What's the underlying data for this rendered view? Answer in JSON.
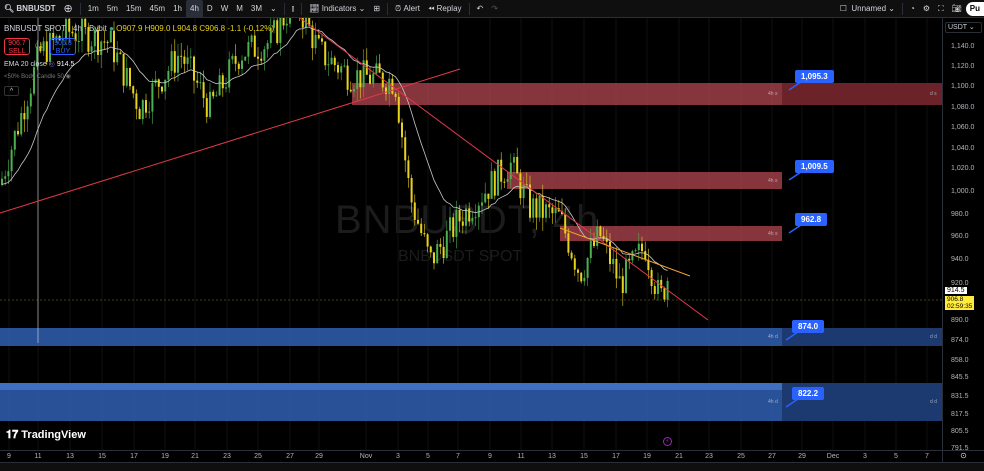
{
  "toolbar": {
    "symbol": "BNBUSDT",
    "intervals": [
      "1m",
      "5m",
      "15m",
      "45m",
      "1h",
      "4h",
      "D",
      "W",
      "M",
      "3M"
    ],
    "active_interval": "4h",
    "indicators_label": "Indicators",
    "alert_label": "Alert",
    "replay_label": "Replay",
    "layout_name": "Unnamed",
    "publish_label": "Pu"
  },
  "legend": {
    "title": "BNBUSDT SPOT · 4h · Bybit",
    "ohlc": "O907.9 H909.0 L904.8 C906.8 -1.1 (-0.12%)",
    "sell_price": "906.7",
    "sell_label": "SELL",
    "spread": "0.1",
    "buy_price": "906.8",
    "buy_label": "BUY",
    "ema_label": "EMA 20 close",
    "ema_value": "914.5",
    "indicator2": "<50% Body Candle 50"
  },
  "watermark": {
    "main": "BNBUSDT, 4h",
    "sub": "BNBUSDT SPOT"
  },
  "zones": [
    {
      "price": "1,095.3",
      "type": "supply",
      "tag": "4h s",
      "tag2": "d s"
    },
    {
      "price": "1,009.5",
      "type": "supply",
      "tag": "4h s"
    },
    {
      "price": "962.8",
      "type": "supply",
      "tag": "4h s"
    },
    {
      "price": "874.0",
      "type": "demand",
      "tag": "4h d",
      "tag2": "d d"
    },
    {
      "price": "822.2",
      "type": "demand",
      "tag": "4h d",
      "tag2": "d d"
    }
  ],
  "price_axis": {
    "currency": "USDT",
    "ticks": [
      "1,140.0",
      "1,120.0",
      "1,100.0",
      "1,080.0",
      "1,060.0",
      "1,040.0",
      "1,020.0",
      "1,000.0",
      "980.0",
      "960.0",
      "940.0",
      "920.0",
      "890.0",
      "874.0",
      "858.0",
      "845.5",
      "831.5",
      "817.5",
      "805.5",
      "791.5"
    ],
    "ema_badge": "914.5",
    "last_price": "906.8",
    "countdown": "02:59:35"
  },
  "time_axis": [
    "9",
    "11",
    "13",
    "15",
    "17",
    "19",
    "21",
    "23",
    "25",
    "27",
    "29",
    "Nov",
    "3",
    "5",
    "7",
    "9",
    "11",
    "13",
    "15",
    "17",
    "19",
    "21",
    "23",
    "25",
    "27",
    "29",
    "Dec",
    "3",
    "5",
    "7"
  ],
  "branding": "TradingView",
  "colors": {
    "supply": "#b2474f",
    "demand": "#2f5fb3",
    "bull": "#4caf50",
    "bear": "#e8d21a",
    "callout": "#2962ff",
    "trendline": "#e0394a",
    "ema": "#c8c8c8",
    "last_price": "#ffeb3b"
  }
}
